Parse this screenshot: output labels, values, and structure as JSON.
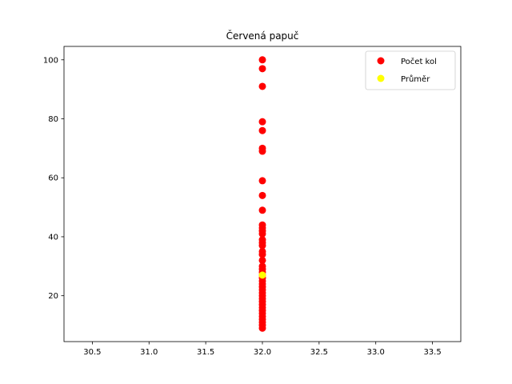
{
  "chart_data": {
    "type": "scatter",
    "title": "Červená papuč",
    "xlabel": "",
    "ylabel": "",
    "xlim": [
      30.25,
      33.75
    ],
    "ylim": [
      4.45,
      104.55
    ],
    "xticks": [
      30.5,
      31.0,
      31.5,
      32.0,
      32.5,
      33.0,
      33.5
    ],
    "xtick_labels": [
      "30.5",
      "31.0",
      "31.5",
      "32.0",
      "32.5",
      "33.0",
      "33.5"
    ],
    "yticks": [
      20,
      40,
      60,
      80,
      100
    ],
    "ytick_labels": [
      "20",
      "40",
      "60",
      "80",
      "100"
    ],
    "grid": false,
    "legend_position": "top-right",
    "series": [
      {
        "name": "Počet kol",
        "color": "#ff0000",
        "x": [
          32,
          32,
          32,
          32,
          32,
          32,
          32,
          32,
          32,
          32,
          32,
          32,
          32,
          32,
          32,
          32,
          32,
          32,
          32,
          32,
          32,
          32,
          32,
          32,
          32,
          32,
          32,
          32,
          32,
          32,
          32,
          32,
          32,
          32,
          32,
          32,
          32,
          32,
          32,
          32,
          32,
          32
        ],
        "y": [
          100,
          97,
          91,
          79,
          76,
          70,
          69,
          59,
          54,
          49,
          44,
          43,
          42,
          41,
          39,
          38,
          37,
          35,
          34,
          32,
          30,
          29,
          28,
          27,
          26,
          25,
          24,
          23,
          22,
          21,
          20,
          19,
          18,
          17,
          16,
          15,
          14,
          13,
          12,
          11,
          10,
          9
        ]
      },
      {
        "name": "Průměr",
        "color": "#ffff00",
        "x": [
          32
        ],
        "y": [
          27
        ]
      }
    ]
  }
}
